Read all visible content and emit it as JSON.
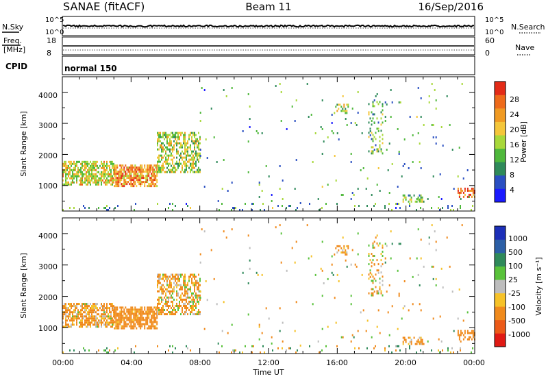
{
  "header": {
    "station": "SANAE (fitACF)",
    "beam": "Beam 11",
    "date": "16/Sep/2016"
  },
  "noise_panel": {
    "left_label": "N.Sky",
    "right_label": "N.Search",
    "left_ticks": [
      "10^5",
      "10^0"
    ],
    "right_ticks": [
      "10^5",
      "10^0"
    ]
  },
  "freq_panel": {
    "left_label_line1": "Freq.",
    "left_label_line2": "[MHz]",
    "left_ticks": [
      "18",
      "8"
    ],
    "right_label": "Nave",
    "right_ticks": [
      "60",
      "0"
    ]
  },
  "cpid_panel": {
    "label": "CPID",
    "mode": "normal 150"
  },
  "x_axis": {
    "title": "Time UT",
    "tick_labels": [
      "00:00",
      "04:00",
      "08:00",
      "12:00",
      "16:00",
      "20:00",
      "00:00"
    ]
  },
  "y_axis": {
    "title": "Slant Range [km]",
    "tick_labels": [
      "1000",
      "2000",
      "3000",
      "4000"
    ]
  },
  "power_colorbar": {
    "title": "Power [dB]",
    "tick_labels": [
      "4",
      "8",
      "12",
      "16",
      "20",
      "24",
      "28"
    ]
  },
  "velocity_colorbar": {
    "title": "Velocity [m s⁻¹]",
    "tick_labels": [
      "1000",
      "500",
      "100",
      "25",
      "-25",
      "-100",
      "-500",
      "-1000"
    ]
  },
  "chart_data": {
    "type": "heatmap",
    "x_units": "hours UT",
    "xlim": [
      0,
      24
    ],
    "y_units": "km",
    "ylim": [
      180,
      4500
    ],
    "power_scale": {
      "range": [
        0,
        30
      ],
      "colors": [
        "#1a1aff",
        "#2a4fc2",
        "#2f8a5a",
        "#4fb83c",
        "#a8d83a",
        "#f4c63a",
        "#f09a22",
        "#ee6a1a",
        "#e32b17"
      ]
    },
    "velocity_scale": {
      "levels": [
        1000,
        500,
        100,
        25,
        -25,
        -100,
        -500,
        -1000
      ],
      "colors": [
        "#1c2fb8",
        "#2c5fa6",
        "#2f8a5a",
        "#59c23a",
        "#bdbdbd",
        "#f6c228",
        "#f08a1c",
        "#ec5a18",
        "#e01a14"
      ]
    },
    "regions": [
      {
        "t": [
          0.0,
          3.0
        ],
        "r": [
          1000,
          1750
        ],
        "power": 17,
        "velocity": -150,
        "density": 0.7
      },
      {
        "t": [
          3.0,
          5.5
        ],
        "r": [
          950,
          1650
        ],
        "power": 22,
        "velocity": -250,
        "density": 0.75
      },
      {
        "t": [
          5.5,
          8.0
        ],
        "r": [
          1400,
          2700
        ],
        "power": 15,
        "velocity": -120,
        "density": 0.55
      },
      {
        "t": [
          15.8,
          16.6
        ],
        "r": [
          3300,
          3600
        ],
        "power": 16,
        "velocity": -200,
        "density": 0.35
      },
      {
        "t": [
          17.8,
          18.6
        ],
        "r": [
          2000,
          3700
        ],
        "power": 13,
        "velocity": -100,
        "density": 0.2
      },
      {
        "t": [
          19.8,
          21.0
        ],
        "r": [
          450,
          650
        ],
        "power": 12,
        "velocity": -180,
        "density": 0.4
      },
      {
        "t": [
          23.0,
          24.0
        ],
        "r": [
          600,
          900
        ],
        "power": 24,
        "velocity": -300,
        "density": 0.4
      },
      {
        "t": [
          0.0,
          24.0
        ],
        "r": [
          180,
          380
        ],
        "power": 10,
        "velocity": 0,
        "density": 0.06
      },
      {
        "t": [
          8.0,
          24.0
        ],
        "r": [
          400,
          4300
        ],
        "power": 10,
        "velocity": -50,
        "density": 0.015
      }
    ]
  }
}
